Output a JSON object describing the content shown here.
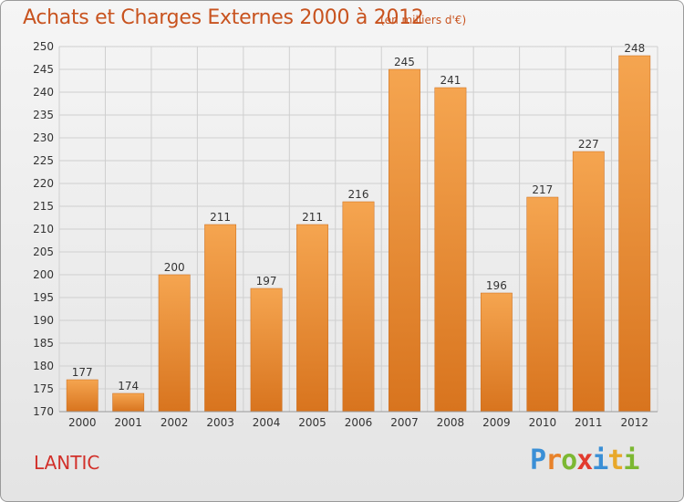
{
  "header": {
    "title": "Achats et Charges Externes 2000 à 2012",
    "subtitle": "(en milliers d'€)"
  },
  "footer": {
    "commune": "LANTIC",
    "brand_letters": [
      "P",
      "r",
      "o",
      "x",
      "i",
      "t",
      "i"
    ],
    "brand_colors": [
      "#3a8fd6",
      "#e8822a",
      "#7cb832",
      "#e23b2e",
      "#3a8fd6",
      "#e8a82a",
      "#7cb832"
    ]
  },
  "colors": {
    "bar_light": "#f5a550",
    "bar_dark": "#d8741e",
    "grid": "#cfcfcf"
  },
  "chart_data": {
    "type": "bar",
    "title": "Achats et Charges Externes 2000 à 2012",
    "subtitle": "(en milliers d'€)",
    "categories": [
      "2000",
      "2001",
      "2002",
      "2003",
      "2004",
      "2005",
      "2006",
      "2007",
      "2008",
      "2009",
      "2010",
      "2011",
      "2012"
    ],
    "values": [
      177,
      174,
      200,
      211,
      197,
      211,
      216,
      245,
      241,
      196,
      217,
      227,
      248
    ],
    "ylim": [
      170,
      250
    ],
    "yticks": [
      170,
      175,
      180,
      185,
      190,
      195,
      200,
      205,
      210,
      215,
      220,
      225,
      230,
      235,
      240,
      245,
      250
    ],
    "grid": true,
    "data_labels": true
  }
}
